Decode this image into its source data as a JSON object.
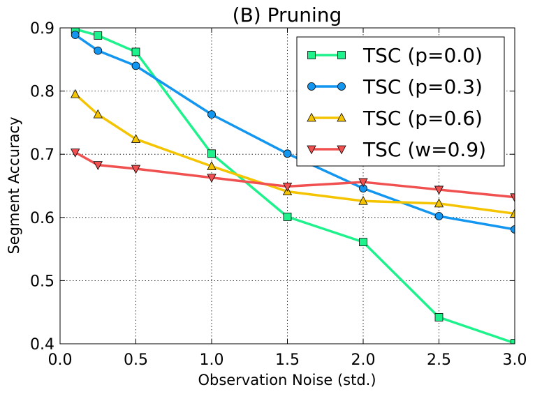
{
  "chart_data": {
    "type": "line",
    "title": "(B) Pruning",
    "xlabel": "Observation Noise (std.)",
    "ylabel": "Segment Accuracy",
    "xlim": [
      0.0,
      3.0
    ],
    "ylim": [
      0.4,
      0.9
    ],
    "xticks": [
      "0.0",
      "0.5",
      "1.0",
      "1.5",
      "2.0",
      "2.5",
      "3.0"
    ],
    "xtick_values": [
      0.0,
      0.5,
      1.0,
      1.5,
      2.0,
      2.5,
      3.0
    ],
    "yticks": [
      "0.4",
      "0.5",
      "0.6",
      "0.7",
      "0.8",
      "0.9"
    ],
    "ytick_values": [
      0.4,
      0.5,
      0.6,
      0.7,
      0.8,
      0.9
    ],
    "grid": true,
    "legend_position": "top-right",
    "series": [
      {
        "name": "TSC (p=0.0)",
        "color": "#1ef28c",
        "marker": "square",
        "x": [
          0.1,
          0.25,
          0.5,
          1.0,
          1.5,
          2.0,
          2.5,
          3.0
        ],
        "y": [
          0.898,
          0.888,
          0.862,
          0.701,
          0.601,
          0.561,
          0.442,
          0.401
        ]
      },
      {
        "name": "TSC (p=0.3)",
        "color": "#1296f0",
        "marker": "circle",
        "x": [
          0.1,
          0.25,
          0.5,
          1.0,
          1.5,
          2.0,
          2.5,
          3.0
        ],
        "y": [
          0.889,
          0.864,
          0.84,
          0.763,
          0.701,
          0.646,
          0.602,
          0.581
        ]
      },
      {
        "name": "TSC (p=0.6)",
        "color": "#f5c400",
        "marker": "triangle-up",
        "x": [
          0.1,
          0.25,
          0.5,
          1.0,
          1.5,
          2.0,
          2.5,
          3.0
        ],
        "y": [
          0.795,
          0.763,
          0.724,
          0.681,
          0.641,
          0.626,
          0.622,
          0.606
        ]
      },
      {
        "name": "TSC (w=0.9)",
        "color": "#f0504f",
        "marker": "triangle-down",
        "x": [
          0.1,
          0.25,
          0.5,
          1.0,
          1.5,
          2.0,
          2.5,
          3.0
        ],
        "y": [
          0.703,
          0.683,
          0.677,
          0.663,
          0.649,
          0.656,
          0.644,
          0.632
        ]
      }
    ]
  }
}
